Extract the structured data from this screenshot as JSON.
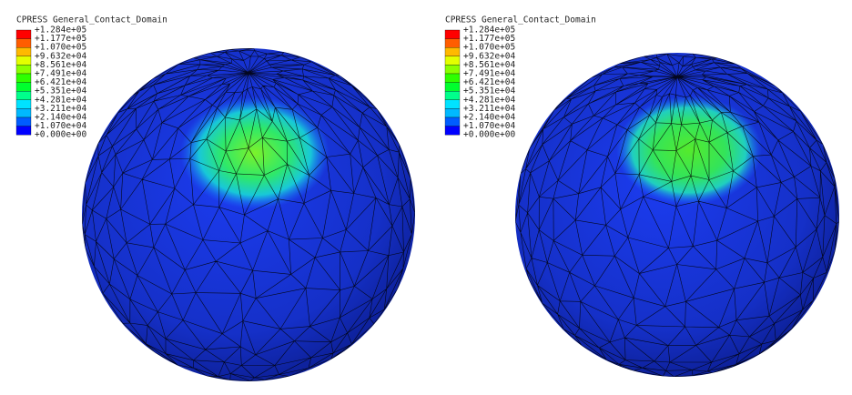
{
  "panels": [
    {
      "legend": {
        "title": "CPRESS General_Contact_Domain",
        "labels": [
          "+1.284e+05",
          "+1.177e+05",
          "+1.070e+05",
          "+9.632e+04",
          "+8.561e+04",
          "+7.491e+04",
          "+6.421e+04",
          "+5.351e+04",
          "+4.281e+04",
          "+3.211e+04",
          "+2.140e+04",
          "+1.070e+04",
          "+0.000e+00"
        ],
        "colors": [
          "#ff0000",
          "#ff5d00",
          "#ffb900",
          "#e3ff00",
          "#8bff00",
          "#2eff00",
          "#00ff2e",
          "#00ff8b",
          "#00e3ff",
          "#00b9ff",
          "#005dff",
          "#0000ff"
        ]
      }
    },
    {
      "legend": {
        "title": "CPRESS General_Contact_Domain",
        "labels": [
          "+1.284e+05",
          "+1.177e+05",
          "+1.070e+05",
          "+9.632e+04",
          "+8.561e+04",
          "+7.491e+04",
          "+6.421e+04",
          "+5.351e+04",
          "+4.281e+04",
          "+3.211e+04",
          "+2.140e+04",
          "+1.070e+04",
          "+0.000e+00"
        ],
        "colors": [
          "#ff0000",
          "#ff5d00",
          "#ffb900",
          "#e3ff00",
          "#8bff00",
          "#2eff00",
          "#00ff2e",
          "#00ff8b",
          "#00e3ff",
          "#00b9ff",
          "#005dff",
          "#0000ff"
        ]
      }
    }
  ]
}
